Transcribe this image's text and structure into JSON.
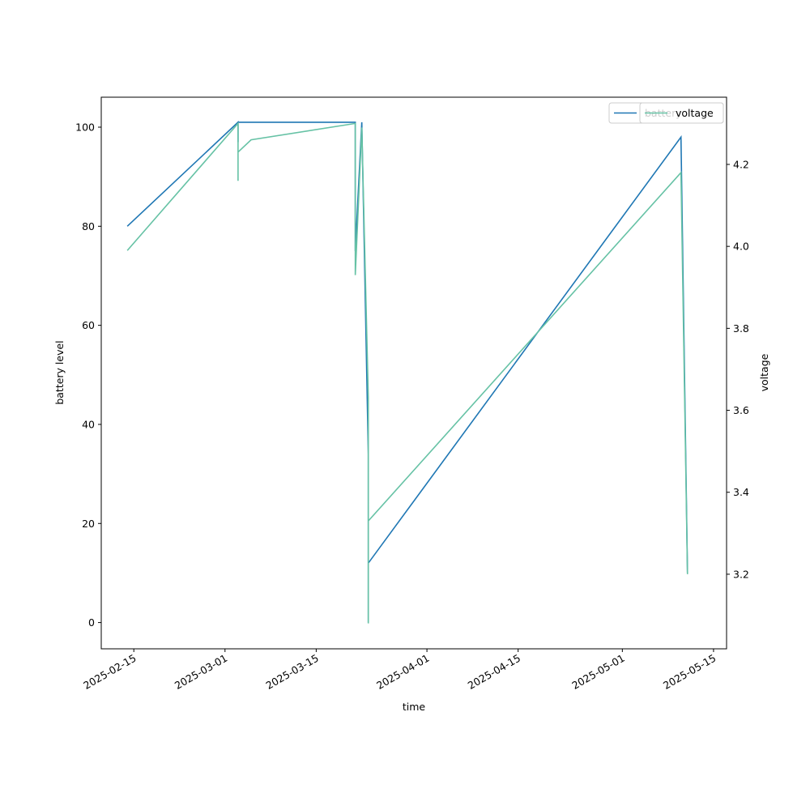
{
  "chart_data": {
    "type": "line",
    "x_label": "time",
    "y_label": "battery level",
    "y2_label": "voltage",
    "xlim": [
      "2025-02-10",
      "2025-05-17"
    ],
    "xticks": [
      "2025-02-15",
      "2025-03-01",
      "2025-03-15",
      "2025-04-01",
      "2025-04-15",
      "2025-05-01",
      "2025-05-15"
    ],
    "ylim": [
      -5.3,
      106.05
    ],
    "yticks": [
      0,
      20,
      40,
      60,
      80,
      100
    ],
    "y2lim": [
      3.018,
      4.364
    ],
    "y2ticks": [
      3.2,
      3.4,
      3.6,
      3.8,
      {
        "value": 4,
        "label": "4.0"
      },
      4.2
    ],
    "legend": "upper right",
    "series": [
      {
        "name": "battery",
        "color": "#1f77b4",
        "x": [
          "2025-02-14",
          "2025-03-03",
          "2025-03-03",
          "2025-03-03",
          "2025-03-21",
          "2025-03-21",
          "2025-03-22",
          "2025-03-23",
          "2025-03-23",
          "2025-03-23",
          "2025-03-23",
          "2025-05-10",
          "2025-05-11"
        ],
        "values": [
          80,
          101,
          97,
          101,
          101,
          75,
          101,
          34,
          41,
          0,
          12,
          98,
          10
        ]
      },
      {
        "name": "voltage",
        "color": "#66c2a5",
        "axis": "y2",
        "x": [
          "2025-02-14",
          "2025-03-03",
          "2025-03-03",
          "2025-03-03",
          "2025-03-05",
          "2025-03-21",
          "2025-03-21",
          "2025-03-22",
          "2025-03-23",
          "2025-03-23",
          "2025-03-23",
          "2025-05-10",
          "2025-05-11"
        ],
        "values": [
          3.99,
          4.3,
          4.16,
          4.23,
          4.26,
          4.3,
          3.93,
          4.29,
          3.63,
          3.08,
          3.33,
          4.18,
          3.2
        ]
      }
    ]
  }
}
